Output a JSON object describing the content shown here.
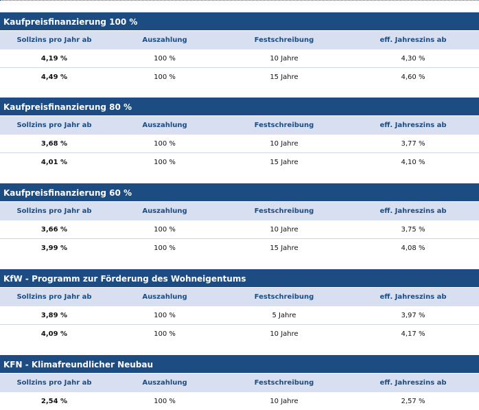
{
  "columns": [
    "Sollzins pro Jahr ab",
    "Auszahlung",
    "Festschreibung",
    "eff. Jahreszins ab"
  ],
  "sections": [
    {
      "title": "Kaufpreisfinanzierung 100 %",
      "rows": [
        [
          "4,19 %",
          "100 %",
          "10 Jahre",
          "4,30 %"
        ],
        [
          "4,49 %",
          "100 %",
          "15 Jahre",
          "4,60 %"
        ]
      ]
    },
    {
      "title": "Kaufpreisfinanzierung 80 %",
      "rows": [
        [
          "3,68 %",
          "100 %",
          "10 Jahre",
          "3,77 %"
        ],
        [
          "4,01 %",
          "100 %",
          "15 Jahre",
          "4,10 %"
        ]
      ]
    },
    {
      "title": "Kaufpreisfinanzierung 60 %",
      "rows": [
        [
          "3,66 %",
          "100 %",
          "10 Jahre",
          "3,75 %"
        ],
        [
          "3,99 %",
          "100 %",
          "15 Jahre",
          "4,08 %"
        ]
      ]
    },
    {
      "title": "KfW - Programm zur Förderung des Wohneigentums",
      "rows": [
        [
          "3,89 %",
          "100 %",
          "5 Jahre",
          "3,97 %"
        ],
        [
          "4,09 %",
          "100 %",
          "10 Jahre",
          "4,17 %"
        ]
      ]
    },
    {
      "title": "KFN - Klimafreundlicher Neubau",
      "rows": [
        [
          "2,54 %",
          "100 %",
          "10 Jahre",
          "2,57 %"
        ]
      ]
    }
  ],
  "colors": {
    "section_title_bg": "#1d4c83",
    "header_bg": "#d7dff0",
    "header_text": "#1d4c83"
  }
}
